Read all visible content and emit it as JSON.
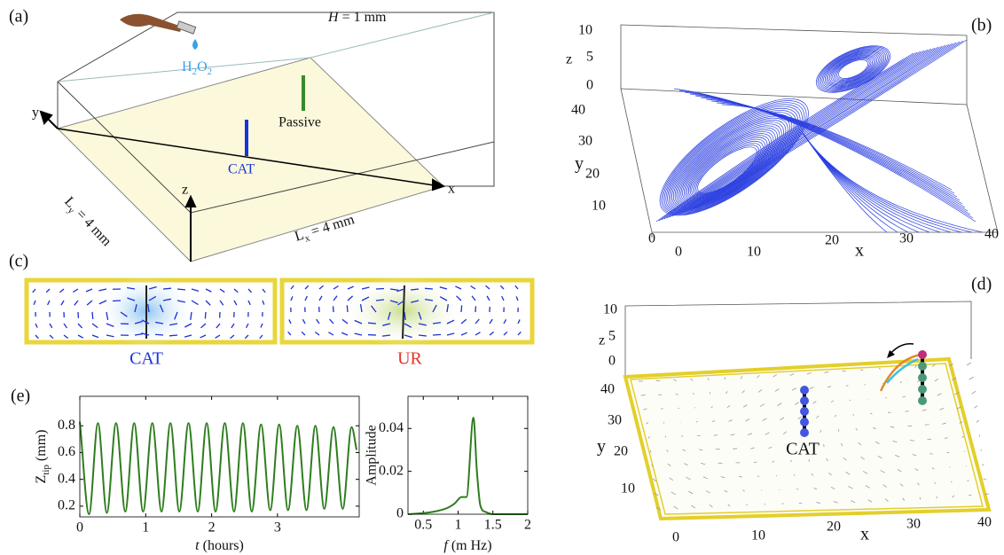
{
  "panels": {
    "a": {
      "label": "(a)",
      "height": {
        "var": "H",
        "rest": " = 1 mm"
      },
      "source": {
        "main": "H",
        "sub": "2",
        "mid": "O",
        "sub2": "2"
      },
      "passive": "Passive",
      "cat": "CAT",
      "axis_x": "x",
      "axis_y": "y",
      "axis_z": "z",
      "ly": {
        "main": "L",
        "sub": "y",
        "rest": " = 4 mm"
      },
      "lx": {
        "main": "L",
        "sub": "x",
        "rest": " = 4 mm"
      }
    },
    "b": {
      "label": "(b)",
      "axis_x": "x",
      "axis_y": "y",
      "axis_z": "z",
      "x_ticks": [
        0,
        10,
        20,
        30,
        40
      ],
      "y_ticks": [
        0,
        10,
        20,
        30,
        40
      ],
      "z_ticks": [
        0,
        5,
        10
      ]
    },
    "c": {
      "label": "(c)",
      "left": "CAT",
      "right": "UR"
    },
    "d": {
      "label": "(d)",
      "axis_x": "x",
      "axis_y": "y",
      "axis_z": "z",
      "x_ticks": [
        0,
        10,
        20,
        30,
        40
      ],
      "y_ticks": [
        10,
        20,
        30,
        40
      ],
      "z_ticks": [
        0,
        5,
        10
      ],
      "cat": "CAT"
    },
    "e": {
      "label": "(e)"
    }
  },
  "chart_data": [
    {
      "type": "line",
      "x_label": {
        "var": "t",
        "rest": " (hours)"
      },
      "y_label": {
        "main": "Z",
        "sub": "tip",
        "rest": " (mm)"
      },
      "x": [
        0,
        0.14,
        0.275,
        0.41,
        0.55,
        0.69,
        0.825,
        0.96,
        1.1,
        1.24,
        1.375,
        1.51,
        1.65,
        1.79,
        1.925,
        2.06,
        2.2,
        2.34,
        2.475,
        2.61,
        2.75,
        2.89,
        3.025,
        3.16,
        3.3,
        3.44,
        3.575,
        3.71,
        3.85,
        3.99,
        4.125,
        4.2
      ],
      "values": [
        0.83,
        0.14,
        0.82,
        0.15,
        0.82,
        0.16,
        0.82,
        0.16,
        0.82,
        0.16,
        0.82,
        0.16,
        0.82,
        0.16,
        0.82,
        0.16,
        0.82,
        0.16,
        0.82,
        0.16,
        0.81,
        0.17,
        0.81,
        0.17,
        0.8,
        0.17,
        0.8,
        0.18,
        0.79,
        0.18,
        0.79,
        0.62
      ],
      "color": "#2e7d1e",
      "xlim": [
        0,
        4.24
      ],
      "ylim": [
        0.12,
        1.02
      ],
      "xticks": [
        0,
        1,
        2,
        3
      ],
      "yticks": [
        0.2,
        0.4,
        0.6,
        0.8
      ]
    },
    {
      "type": "line",
      "x_label": {
        "var": "f",
        "rest": " (m Hz)"
      },
      "y_label": "Amplitude",
      "x": [
        0.28,
        0.5,
        0.7,
        0.85,
        0.95,
        1.05,
        1.12,
        1.22,
        1.27,
        1.32,
        1.4,
        1.5,
        2
      ],
      "values": [
        0,
        0.0005,
        0.0015,
        0.003,
        0.005,
        0.008,
        0.008,
        0.045,
        0.02,
        0.004,
        0.001,
        0,
        0
      ],
      "color": "#2e7d1e",
      "xlim": [
        0.28,
        2.0
      ],
      "ylim": [
        0,
        0.055
      ],
      "xticks": [
        0.5,
        1,
        1.5,
        2
      ],
      "yticks": [
        0,
        0.02,
        0.04
      ]
    }
  ]
}
